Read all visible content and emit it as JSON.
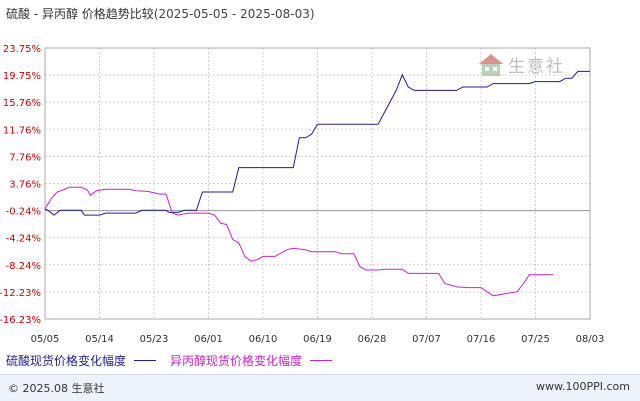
{
  "title": {
    "main": "硫酸 - 异丙醇 价格趋势比较",
    "range": "(2025-05-05 - 2025-08-03)"
  },
  "watermark": {
    "text": "生意社",
    "icon": "house-logo-icon"
  },
  "footer": {
    "copyright": "© 2025.08 生意社",
    "site": "www.100PPI.com"
  },
  "colors": {
    "series1": "#1d1d9c",
    "series2": "#cc22cc",
    "axis": "#aaaaaa",
    "grid": "#d0d0d0",
    "ticks": "#cc0000"
  },
  "chart_data": {
    "type": "line",
    "x_ticks": [
      "05/05",
      "05/14",
      "05/23",
      "06/01",
      "06/10",
      "06/19",
      "06/28",
      "07/07",
      "07/16",
      "07/25",
      "08/03"
    ],
    "y_ticks": [
      "23.75%",
      "19.75%",
      "15.76%",
      "11.76%",
      "7.76%",
      "3.76%",
      "-0.24%",
      "-4.24%",
      "-8.24%",
      "-12.23%",
      "-16.23%"
    ],
    "ylim": [
      -16.23,
      23.75
    ],
    "x_range_days": [
      0,
      90
    ],
    "grid": true,
    "legend_position": "bottom",
    "series": [
      {
        "name": "硫酸现货价格变化幅度",
        "color": "#1d1d9c",
        "points": [
          [
            0,
            0
          ],
          [
            0.5,
            -0.2
          ],
          [
            1.5,
            -0.9
          ],
          [
            2.5,
            -0.2
          ],
          [
            6,
            -0.2
          ],
          [
            6.5,
            -0.9
          ],
          [
            9,
            -0.9
          ],
          [
            10,
            -0.6
          ],
          [
            15,
            -0.6
          ],
          [
            16,
            -0.2
          ],
          [
            20,
            -0.2
          ],
          [
            20.5,
            -0.5
          ],
          [
            22,
            -0.5
          ],
          [
            23,
            -0.2
          ],
          [
            25,
            -0.2
          ],
          [
            26,
            2.5
          ],
          [
            31,
            2.5
          ],
          [
            32,
            6.1
          ],
          [
            41,
            6.1
          ],
          [
            42,
            10.5
          ],
          [
            43,
            10.5
          ],
          [
            44,
            11
          ],
          [
            45,
            12.5
          ],
          [
            55,
            12.5
          ],
          [
            58,
            17.5
          ],
          [
            59,
            19.8
          ],
          [
            60,
            18
          ],
          [
            61,
            17.5
          ],
          [
            68,
            17.5
          ],
          [
            69,
            18
          ],
          [
            73,
            18
          ],
          [
            74,
            18.5
          ],
          [
            80,
            18.5
          ],
          [
            81,
            18.8
          ],
          [
            85,
            18.8
          ],
          [
            86,
            19.3
          ],
          [
            87,
            19.3
          ],
          [
            88,
            20.3
          ],
          [
            90,
            20.3
          ]
        ]
      },
      {
        "name": "异丙醇现货价格变化幅度",
        "color": "#cc22cc",
        "points": [
          [
            0,
            0
          ],
          [
            1,
            1.5
          ],
          [
            2,
            2.5
          ],
          [
            3,
            2.8
          ],
          [
            4,
            3.2
          ],
          [
            6,
            3.2
          ],
          [
            7,
            2.8
          ],
          [
            7.5,
            2
          ],
          [
            8.5,
            2.7
          ],
          [
            10,
            2.9
          ],
          [
            14,
            2.9
          ],
          [
            15,
            2.7
          ],
          [
            17,
            2.6
          ],
          [
            19,
            2.2
          ],
          [
            20,
            2.2
          ],
          [
            21,
            -0.6
          ],
          [
            22,
            -0.9
          ],
          [
            23,
            -0.7
          ],
          [
            24,
            -0.6
          ],
          [
            27,
            -0.6
          ],
          [
            28,
            -0.9
          ],
          [
            29,
            -2.1
          ],
          [
            30,
            -2.3
          ],
          [
            31,
            -4.5
          ],
          [
            32,
            -5
          ],
          [
            33,
            -7
          ],
          [
            34,
            -7.7
          ],
          [
            35,
            -7.5
          ],
          [
            36,
            -7
          ],
          [
            38,
            -7
          ],
          [
            39,
            -6.5
          ],
          [
            40,
            -6
          ],
          [
            41,
            -5.8
          ],
          [
            43,
            -6
          ],
          [
            44,
            -6.3
          ],
          [
            48,
            -6.3
          ],
          [
            49,
            -6.6
          ],
          [
            51,
            -6.6
          ],
          [
            52,
            -8.5
          ],
          [
            53,
            -9
          ],
          [
            55,
            -9
          ],
          [
            56,
            -8.9
          ],
          [
            59,
            -8.9
          ],
          [
            60,
            -9.5
          ],
          [
            65,
            -9.5
          ],
          [
            66,
            -11
          ],
          [
            68,
            -11.5
          ],
          [
            70,
            -11.6
          ],
          [
            72,
            -11.6
          ],
          [
            73,
            -12.2
          ],
          [
            74,
            -12.8
          ],
          [
            76,
            -12.5
          ],
          [
            78,
            -12.2
          ],
          [
            79,
            -11
          ],
          [
            80,
            -9.7
          ],
          [
            84,
            -9.7
          ]
        ]
      }
    ]
  }
}
